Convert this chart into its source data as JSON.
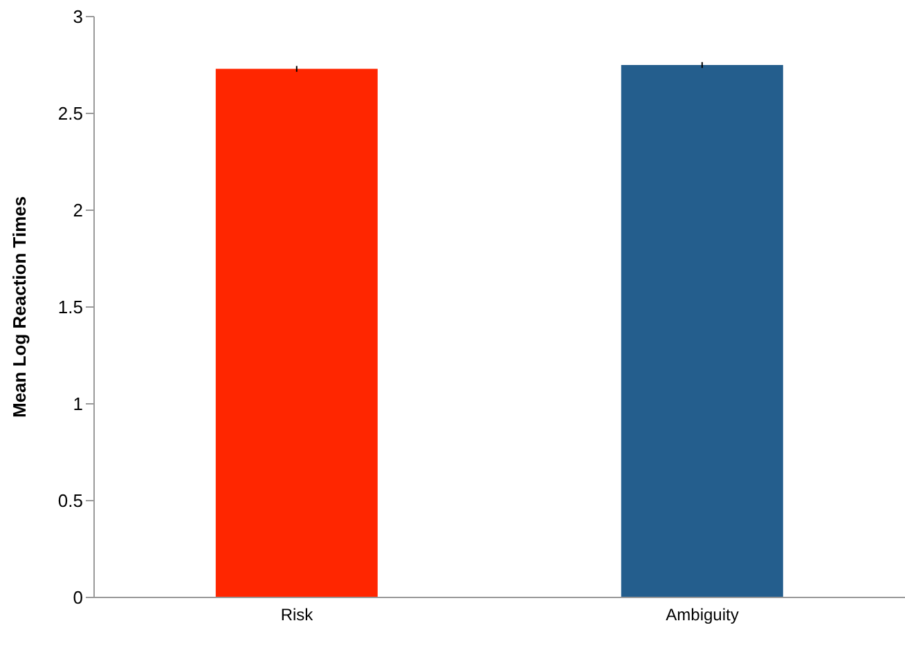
{
  "chart_data": {
    "type": "bar",
    "ylabel": "Mean Log Reaction Times",
    "categories": [
      "Risk",
      "Ambiguity"
    ],
    "values": [
      2.73,
      2.75
    ],
    "errors": [
      0.015,
      0.015
    ],
    "colors": [
      "#ff2600",
      "#245e8d"
    ],
    "ylim": [
      0,
      3
    ],
    "yticks": [
      0,
      0.5,
      1,
      1.5,
      2,
      2.5,
      3
    ]
  }
}
